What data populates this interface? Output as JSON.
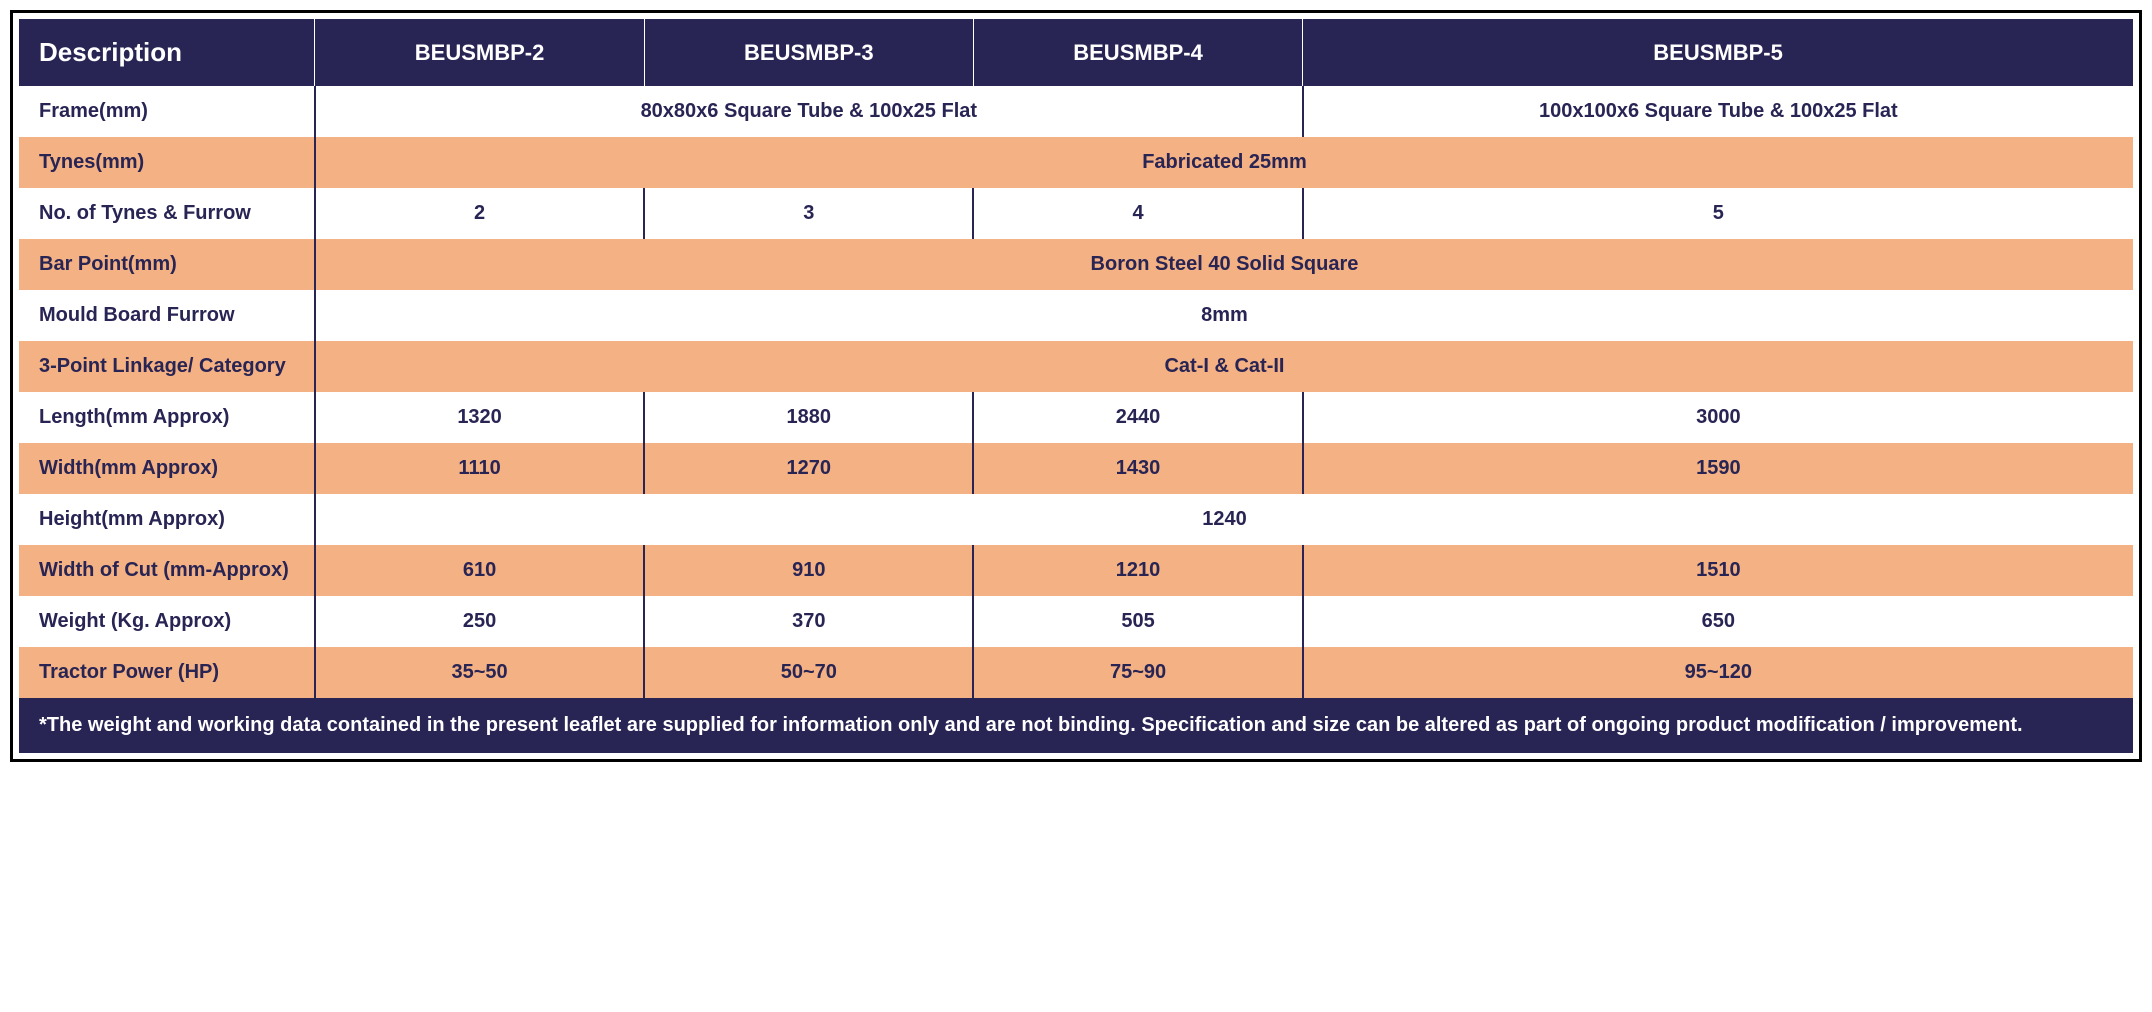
{
  "table": {
    "type": "table",
    "header_bg": "#282454",
    "header_fg": "#ffffff",
    "row_bg_white": "#ffffff",
    "row_bg_orange": "#f4b183",
    "text_color": "#282454",
    "footer_bg": "#282454",
    "footer_fg": "#ffffff",
    "border_color": "#000000",
    "inner_divider_color": "#282454",
    "columns": [
      {
        "label": "Description",
        "width": "14%"
      },
      {
        "label": "BEUSMBP-2",
        "width": "21.5%"
      },
      {
        "label": "BEUSMBP-3",
        "width": "21.5%"
      },
      {
        "label": "BEUSMBP-4",
        "width": "21.5%"
      },
      {
        "label": "BEUSMBP-5",
        "width": "21.5%"
      }
    ],
    "rows": [
      {
        "label": "Frame(mm)",
        "bg": "white",
        "span": "3+1",
        "cells": [
          "80x80x6 Square Tube & 100x25 Flat",
          "100x100x6 Square Tube & 100x25 Flat"
        ]
      },
      {
        "label": "Tynes(mm)",
        "bg": "orange",
        "span": "4",
        "cells": [
          "Fabricated 25mm"
        ]
      },
      {
        "label": "No. of Tynes & Furrow",
        "bg": "white",
        "span": "1",
        "cells": [
          "2",
          "3",
          "4",
          "5"
        ]
      },
      {
        "label": "Bar Point(mm)",
        "bg": "orange",
        "span": "4",
        "cells": [
          "Boron Steel 40 Solid Square"
        ]
      },
      {
        "label": "Mould Board Furrow",
        "bg": "white",
        "span": "4",
        "cells": [
          "8mm"
        ]
      },
      {
        "label": "3-Point Linkage/ Category",
        "bg": "orange",
        "span": "4",
        "cells": [
          "Cat-I & Cat-II"
        ]
      },
      {
        "label": "Length(mm Approx)",
        "bg": "white",
        "span": "1",
        "cells": [
          "1320",
          "1880",
          "2440",
          "3000"
        ]
      },
      {
        "label": "Width(mm Approx)",
        "bg": "orange",
        "span": "1",
        "cells": [
          "1110",
          "1270",
          "1430",
          "1590"
        ]
      },
      {
        "label": "Height(mm Approx)",
        "bg": "white",
        "span": "4",
        "cells": [
          "1240"
        ]
      },
      {
        "label": "Width of Cut (mm-Approx)",
        "bg": "orange",
        "span": "1",
        "cells": [
          "610",
          "910",
          "1210",
          "1510"
        ]
      },
      {
        "label": "Weight (Kg. Approx)",
        "bg": "white",
        "span": "1",
        "cells": [
          "250",
          "370",
          "505",
          "650"
        ]
      },
      {
        "label": "Tractor Power (HP)",
        "bg": "orange",
        "span": "1",
        "cells": [
          "35~50",
          "50~70",
          "75~90",
          "95~120"
        ]
      }
    ],
    "footer": "*The weight and working data contained in the present leaflet are supplied for information only and are not binding. Specification and size can be altered as part of ongoing product modification / improvement."
  }
}
